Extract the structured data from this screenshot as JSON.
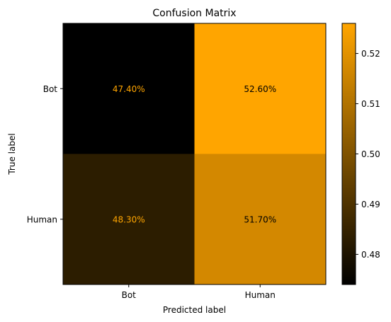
{
  "chart_data": {
    "type": "heatmap",
    "title": "Confusion Matrix",
    "xlabel": "Predicted label",
    "ylabel": "True label",
    "x_categories": [
      "Bot",
      "Human"
    ],
    "y_categories": [
      "Bot",
      "Human"
    ],
    "values": [
      [
        0.474,
        0.526
      ],
      [
        0.483,
        0.517
      ]
    ],
    "cell_labels": [
      [
        "47.40%",
        "52.60%"
      ],
      [
        "48.30%",
        "51.70%"
      ]
    ],
    "colormap": {
      "low": "#000000",
      "high": "#ffa500"
    },
    "colorbar": {
      "range": [
        0.474,
        0.526
      ],
      "ticks": [
        0.48,
        0.49,
        0.5,
        0.51,
        0.52
      ],
      "tick_labels": [
        "0.48",
        "0.49",
        "0.50",
        "0.51",
        "0.52"
      ]
    },
    "label_colors": {
      "on_dark": "#ffa500",
      "on_light": "#000000"
    }
  }
}
